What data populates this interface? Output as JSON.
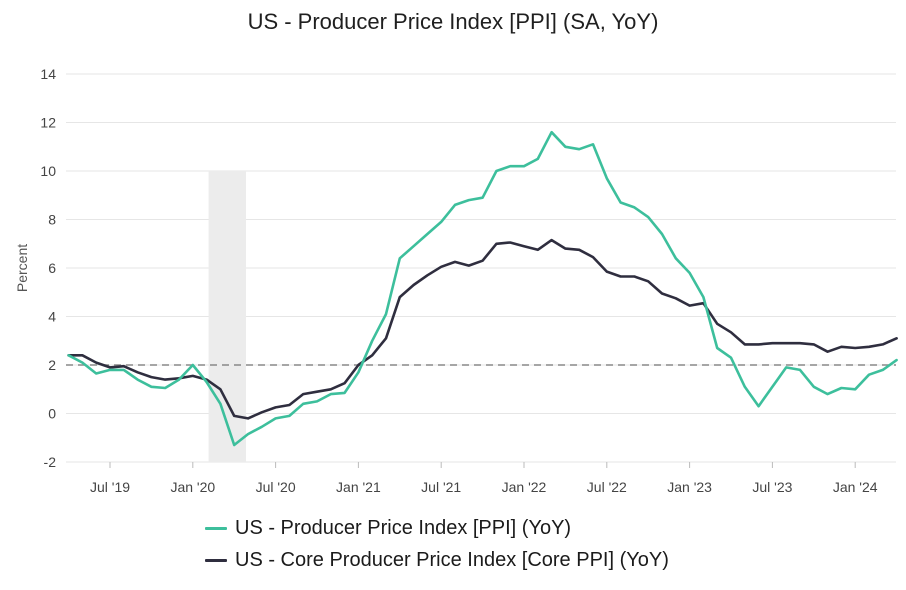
{
  "chart_data": {
    "type": "line",
    "title": "US - Producer Price Index [PPI] (SA, YoY)",
    "ylabel": "Percent",
    "xlabel": "",
    "ylim": [
      -2,
      14
    ],
    "yticks": [
      -2,
      0,
      2,
      4,
      6,
      8,
      10,
      12,
      14
    ],
    "x_ticks": [
      {
        "label": "Jul '19",
        "date": "2019-07"
      },
      {
        "label": "Jan '20",
        "date": "2020-01"
      },
      {
        "label": "Jul '20",
        "date": "2020-07"
      },
      {
        "label": "Jan '21",
        "date": "2021-01"
      },
      {
        "label": "Jul '21",
        "date": "2021-07"
      },
      {
        "label": "Jan '22",
        "date": "2022-01"
      },
      {
        "label": "Jul '22",
        "date": "2022-07"
      },
      {
        "label": "Jan '23",
        "date": "2023-01"
      },
      {
        "label": "Jul '23",
        "date": "2023-07"
      },
      {
        "label": "Jan '24",
        "date": "2024-01"
      }
    ],
    "grid": "horizontal",
    "legend_position": "bottom",
    "reference_line": {
      "y": 2,
      "style": "dashed",
      "color": "#888888"
    },
    "shaded_region": {
      "from": "2020-02",
      "to": "2020-04",
      "color": "#ececec"
    },
    "x": [
      "2019-04",
      "2019-05",
      "2019-06",
      "2019-07",
      "2019-08",
      "2019-09",
      "2019-10",
      "2019-11",
      "2019-12",
      "2020-01",
      "2020-02",
      "2020-03",
      "2020-04",
      "2020-05",
      "2020-06",
      "2020-07",
      "2020-08",
      "2020-09",
      "2020-10",
      "2020-11",
      "2020-12",
      "2021-01",
      "2021-02",
      "2021-03",
      "2021-04",
      "2021-05",
      "2021-06",
      "2021-07",
      "2021-08",
      "2021-09",
      "2021-10",
      "2021-11",
      "2021-12",
      "2022-01",
      "2022-02",
      "2022-03",
      "2022-04",
      "2022-05",
      "2022-06",
      "2022-07",
      "2022-08",
      "2022-09",
      "2022-10",
      "2022-11",
      "2022-12",
      "2023-01",
      "2023-02",
      "2023-03",
      "2023-04",
      "2023-05",
      "2023-06",
      "2023-07",
      "2023-08",
      "2023-09",
      "2023-10",
      "2023-11",
      "2023-12",
      "2024-01",
      "2024-02",
      "2024-03",
      "2024-04"
    ],
    "series": [
      {
        "name": "US - Producer Price Index [PPI] (YoY)",
        "color": "#3dbf9c",
        "values": [
          2.4,
          2.1,
          1.65,
          1.8,
          1.8,
          1.4,
          1.1,
          1.05,
          1.4,
          2.0,
          1.3,
          0.4,
          -1.3,
          -0.85,
          -0.55,
          -0.2,
          -0.1,
          0.4,
          0.5,
          0.8,
          0.85,
          1.7,
          3.0,
          4.1,
          6.4,
          6.9,
          7.4,
          7.9,
          8.6,
          8.8,
          8.9,
          10.0,
          10.2,
          10.2,
          10.5,
          11.6,
          11.0,
          10.9,
          11.1,
          9.7,
          8.7,
          8.5,
          8.1,
          7.4,
          6.4,
          5.8,
          4.8,
          2.7,
          2.3,
          1.1,
          0.3,
          1.1,
          1.9,
          1.8,
          1.1,
          0.8,
          1.05,
          1.0,
          1.6,
          1.8,
          2.2
        ]
      },
      {
        "name": "US - Core Producer Price Index [Core PPI] (YoY)",
        "color": "#2f2e3f",
        "values": [
          2.4,
          2.4,
          2.1,
          1.9,
          1.95,
          1.7,
          1.5,
          1.4,
          1.45,
          1.55,
          1.4,
          1.0,
          -0.1,
          -0.2,
          0.05,
          0.25,
          0.35,
          0.8,
          0.9,
          1.0,
          1.25,
          2.0,
          2.4,
          3.1,
          4.8,
          5.3,
          5.7,
          6.05,
          6.25,
          6.1,
          6.3,
          7.0,
          7.05,
          6.9,
          6.75,
          7.15,
          6.8,
          6.75,
          6.45,
          5.85,
          5.65,
          5.65,
          5.45,
          4.95,
          4.75,
          4.45,
          4.55,
          3.7,
          3.35,
          2.85,
          2.85,
          2.9,
          2.9,
          2.9,
          2.85,
          2.55,
          2.75,
          2.7,
          2.75,
          2.85,
          3.1
        ]
      }
    ]
  }
}
